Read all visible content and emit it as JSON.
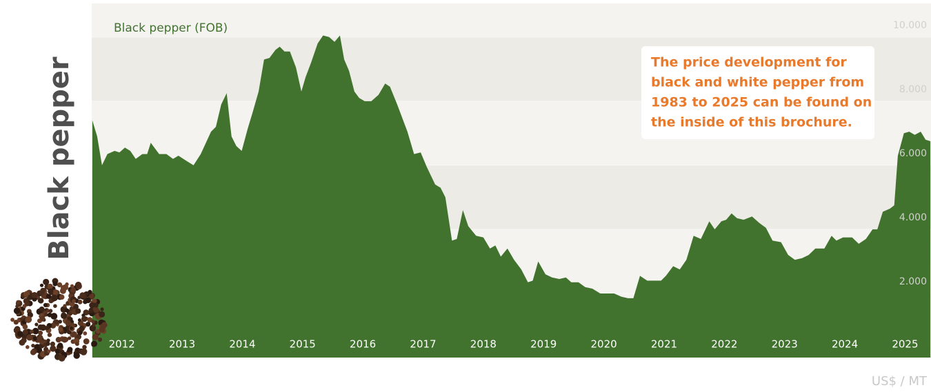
{
  "chart_data": {
    "type": "area",
    "title": "Black pepper",
    "series_label": "Black pepper (FOB)",
    "unit_label": "US$ / MT",
    "annotation": [
      "The price development for",
      "black and white pepper from",
      "1983 to 2025 can be found on",
      "the inside of this brochure."
    ],
    "color": "#41732f",
    "x": [
      2012.01,
      2012.09,
      2012.17,
      2012.26,
      2012.38,
      2012.46,
      2012.55,
      2012.64,
      2012.73,
      2012.84,
      2012.92,
      2012.98,
      2013.12,
      2013.24,
      2013.35,
      2013.44,
      2013.56,
      2013.69,
      2013.81,
      2013.98,
      2014.06,
      2014.15,
      2014.24,
      2014.32,
      2014.4,
      2014.49,
      2014.59,
      2014.67,
      2014.77,
      2014.86,
      2014.95,
      2015.05,
      2015.12,
      2015.2,
      2015.29,
      2015.39,
      2015.48,
      2015.55,
      2015.64,
      2015.75,
      2015.84,
      2015.94,
      2016.03,
      2016.12,
      2016.19,
      2016.27,
      2016.36,
      2016.44,
      2016.53,
      2016.64,
      2016.76,
      2016.87,
      2016.95,
      2017.07,
      2017.24,
      2017.35,
      2017.46,
      2017.56,
      2017.7,
      2017.79,
      2017.87,
      2017.98,
      2018.06,
      2018.16,
      2018.25,
      2018.38,
      2018.5,
      2018.61,
      2018.7,
      2018.79,
      2018.9,
      2019.01,
      2019.13,
      2019.24,
      2019.32,
      2019.41,
      2019.53,
      2019.64,
      2019.76,
      2019.87,
      2019.96,
      2020.08,
      2020.19,
      2020.31,
      2020.44,
      2020.56,
      2020.67,
      2020.79,
      2020.9,
      2020.99,
      2021.1,
      2021.22,
      2021.33,
      2021.45,
      2021.53,
      2021.65,
      2021.76,
      2021.87,
      2021.99,
      2022.11,
      2022.25,
      2022.34,
      2022.45,
      2022.53,
      2022.62,
      2022.71,
      2022.82,
      2022.96,
      2023.08,
      2023.19,
      2023.3,
      2023.44,
      2023.56,
      2023.67,
      2023.79,
      2023.9,
      2024.01,
      2024.16,
      2024.28,
      2024.36,
      2024.47,
      2024.62,
      2024.73,
      2024.85,
      2024.96,
      2025.04,
      2025.13,
      2025.25,
      2025.32,
      2025.38,
      2025.48,
      2025.57,
      2025.66,
      2025.76,
      2025.84,
      2025.92
    ],
    "values": [
      7400,
      6900,
      6000,
      6350,
      6450,
      6400,
      6550,
      6450,
      6200,
      6350,
      6350,
      6700,
      6350,
      6350,
      6200,
      6300,
      6150,
      6000,
      6350,
      7050,
      7200,
      7900,
      8250,
      6900,
      6600,
      6450,
      7150,
      7650,
      8300,
      9300,
      9350,
      9600,
      9700,
      9550,
      9550,
      9050,
      8300,
      8750,
      9200,
      9800,
      10050,
      10000,
      9850,
      10050,
      9300,
      8950,
      8300,
      8100,
      8000,
      8000,
      8200,
      8550,
      8450,
      7900,
      7050,
      6350,
      6400,
      5950,
      5400,
      5300,
      5000,
      3650,
      3700,
      4600,
      4100,
      3800,
      3750,
      3400,
      3500,
      3150,
      3400,
      3050,
      2750,
      2350,
      2400,
      3000,
      2600,
      2500,
      2450,
      2500,
      2350,
      2350,
      2200,
      2150,
      2000,
      2000,
      2000,
      1900,
      1850,
      1850,
      2550,
      2400,
      2400,
      2400,
      2550,
      2850,
      2750,
      3050,
      3800,
      3700,
      4250,
      4000,
      4250,
      4300,
      4500,
      4350,
      4300,
      4400,
      4200,
      4050,
      3650,
      3600,
      3200,
      3050,
      3100,
      3200,
      3400,
      3400,
      3800,
      3650,
      3750,
      3750,
      3550,
      3700,
      4000,
      4000,
      4550,
      4650,
      4750,
      6300,
      7000,
      7050,
      6950,
      7050,
      6800,
      6750
    ],
    "xlim": [
      2012,
      2025.93
    ],
    "xticks": [
      {
        "value": 2012.5,
        "label": "2012"
      },
      {
        "value": 2013.5,
        "label": "2013"
      },
      {
        "value": 2014.5,
        "label": "2014"
      },
      {
        "value": 2015.5,
        "label": "2015"
      },
      {
        "value": 2016.5,
        "label": "2016"
      },
      {
        "value": 2017.5,
        "label": "2017"
      },
      {
        "value": 2018.5,
        "label": "2018"
      },
      {
        "value": 2019.5,
        "label": "2019"
      },
      {
        "value": 2020.5,
        "label": "2020"
      },
      {
        "value": 2021.5,
        "label": "2021"
      },
      {
        "value": 2022.5,
        "label": "2022"
      },
      {
        "value": 2023.5,
        "label": "2023"
      },
      {
        "value": 2024.5,
        "label": "2024"
      },
      {
        "value": 2025.5,
        "label": "2025"
      }
    ],
    "ylim": [
      0,
      11050
    ],
    "yticks": [
      {
        "value": 2000,
        "label": "2.000"
      },
      {
        "value": 4000,
        "label": "4.000"
      },
      {
        "value": 6000,
        "label": "6.000"
      },
      {
        "value": 8000,
        "label": "8.000"
      },
      {
        "value": 10000,
        "label": "10.000"
      }
    ]
  }
}
